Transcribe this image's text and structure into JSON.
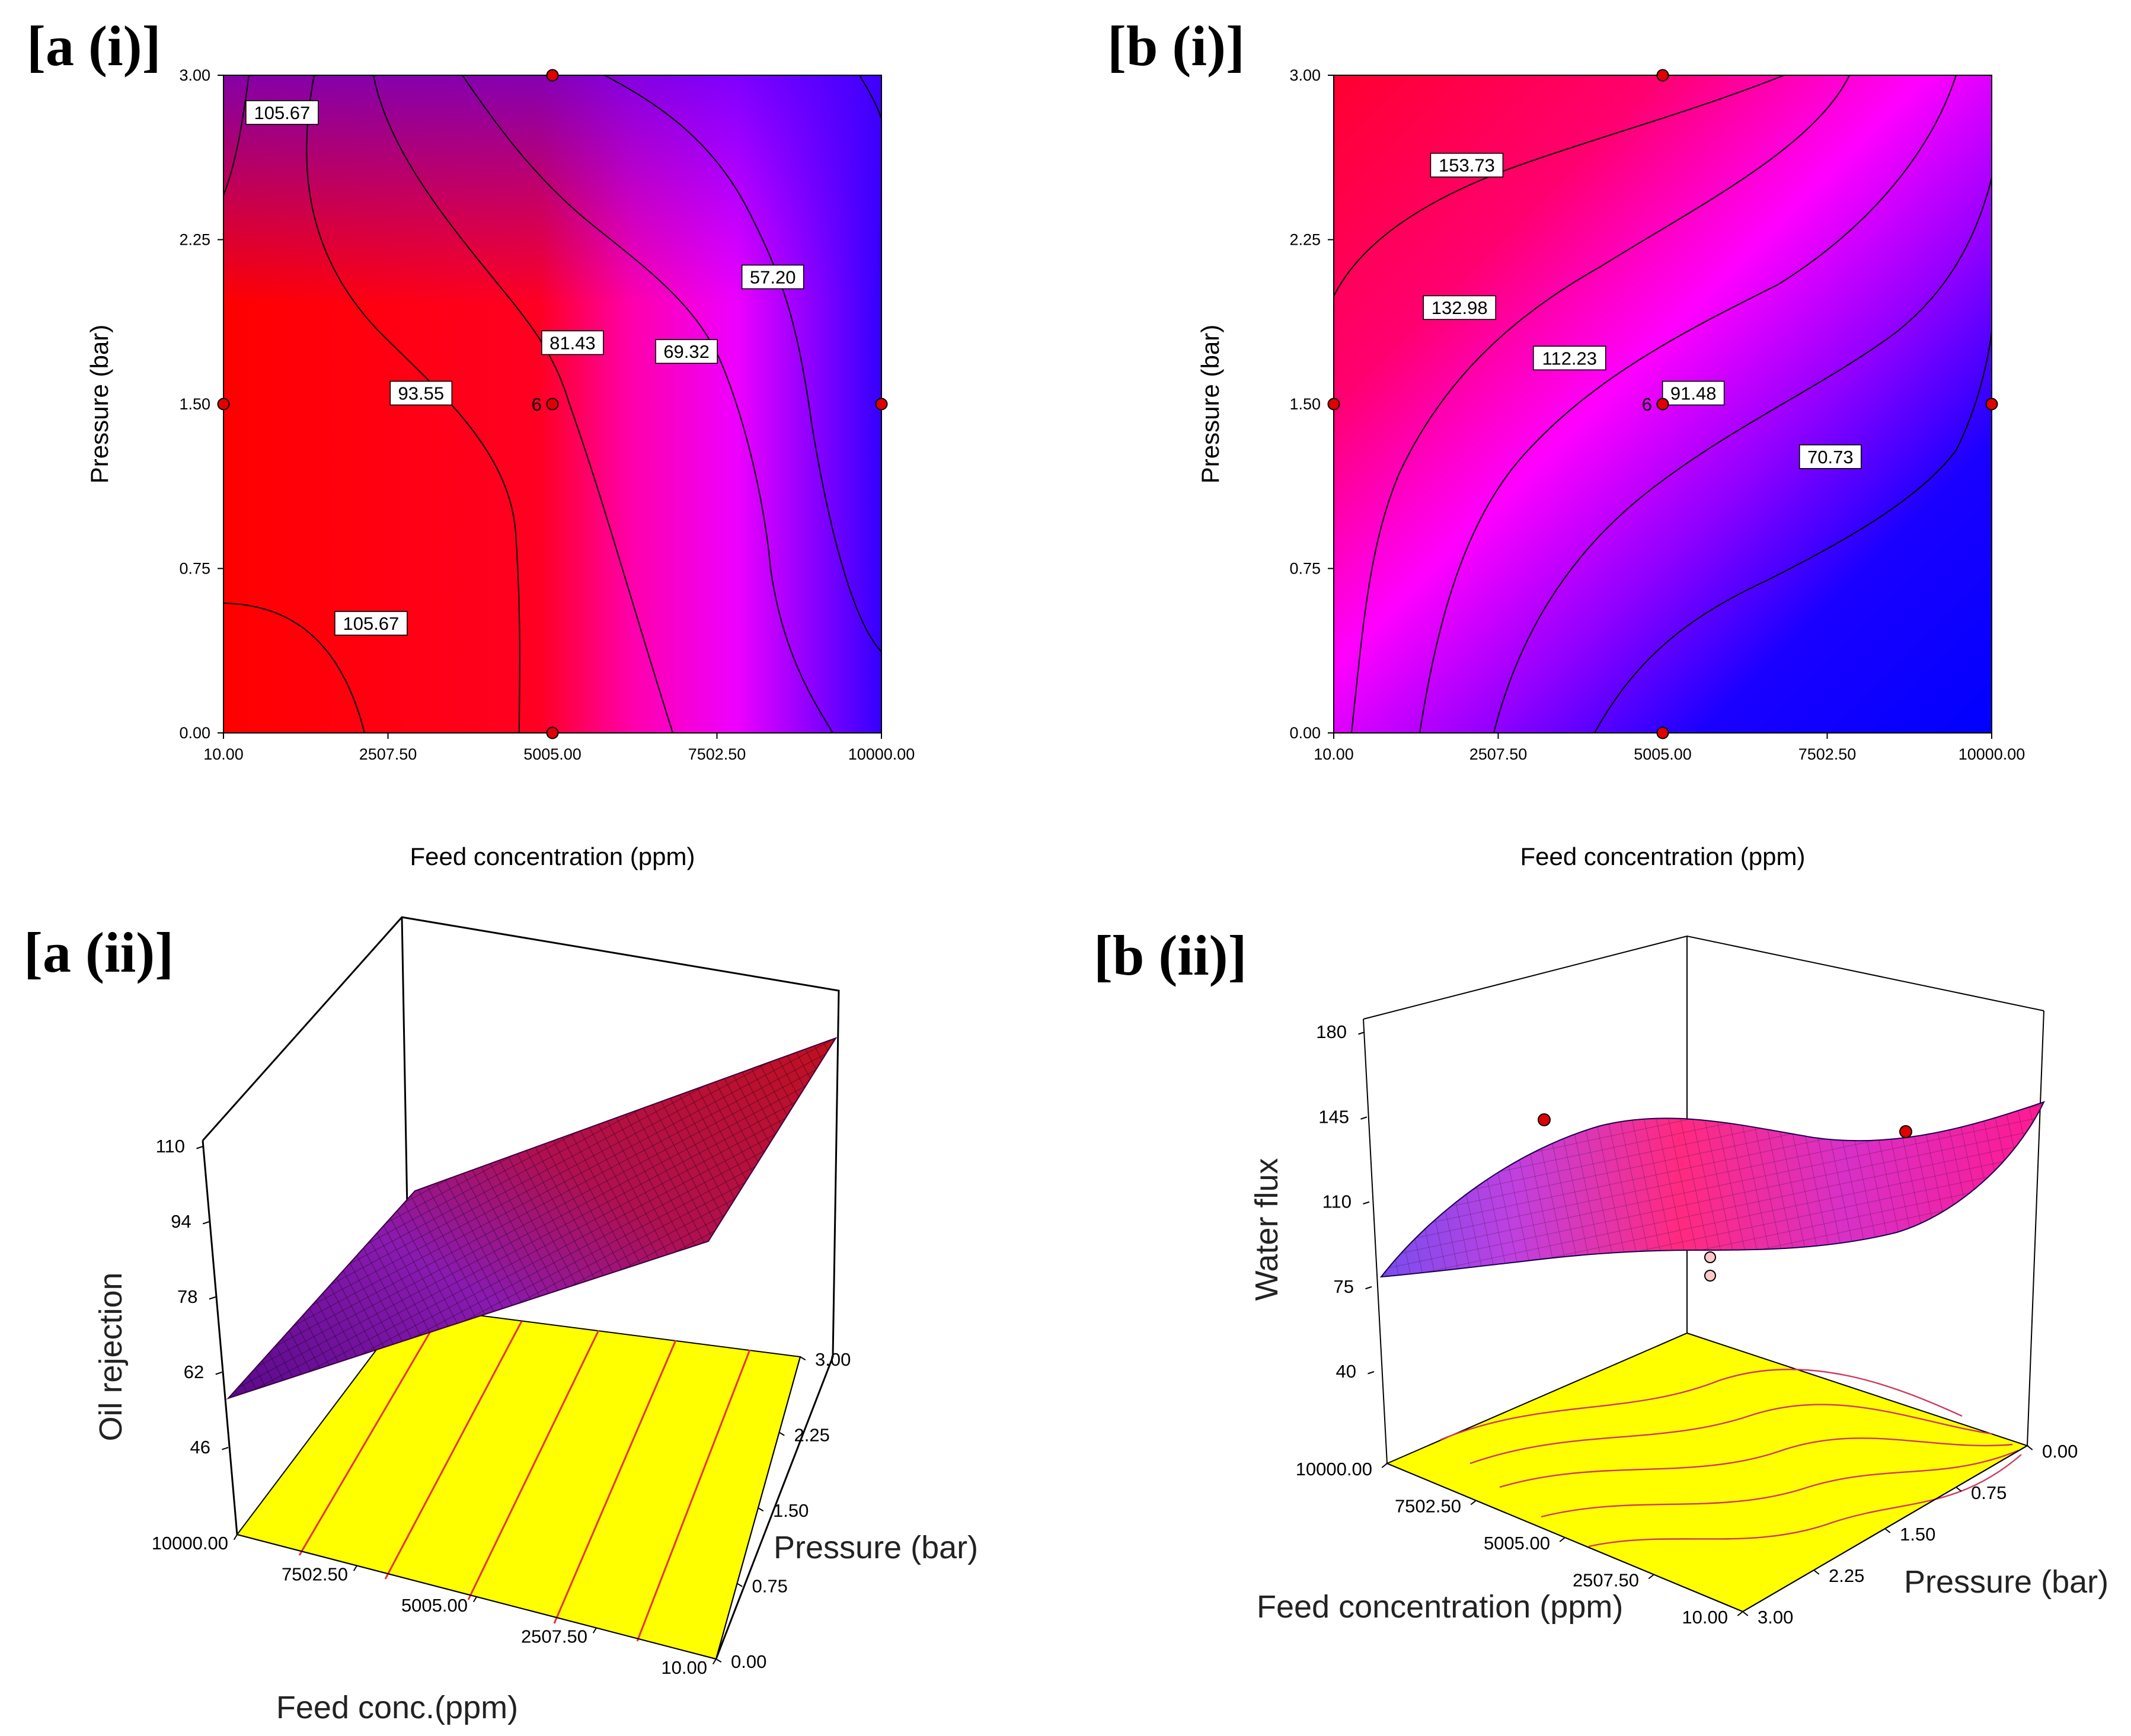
{
  "panel_labels": {
    "a_i": "[a (i)]",
    "b_i": "[b (i)]",
    "a_ii": "[a (ii)]",
    "b_ii": "[b (ii)]"
  },
  "colors": {
    "red": "#ff0000",
    "magenta": "#ff00ff",
    "blue": "#0000ff",
    "yellow": "#ffff00",
    "contour_line_red": "#e8322e",
    "design_point": "#e00000"
  },
  "chart_data": [
    {
      "id": "a_i",
      "type": "contour",
      "title": "",
      "xlabel": "Feed concentration (ppm)",
      "ylabel": "Pressure (bar)",
      "xlim": [
        10,
        10000
      ],
      "ylim": [
        0,
        3
      ],
      "x_ticks": [
        "10.00",
        "2507.50",
        "5005.00",
        "7502.50",
        "10000.00"
      ],
      "y_ticks": [
        "0.00",
        "0.75",
        "1.50",
        "2.25",
        "3.00"
      ],
      "color_scale": "red (high) - magenta - blue (low)",
      "contour_labels": [
        {
          "value": "105.67",
          "x": 900,
          "y": 2.83
        },
        {
          "value": "105.67",
          "x": 2250,
          "y": 0.5
        },
        {
          "value": "93.55",
          "x": 3010,
          "y": 1.55
        },
        {
          "value": "81.43",
          "x": 5310,
          "y": 1.78
        },
        {
          "value": "69.32",
          "x": 7040,
          "y": 1.74
        },
        {
          "value": "57.20",
          "x": 8350,
          "y": 2.08
        }
      ],
      "design_points": [
        {
          "x": 10,
          "y": 1.5
        },
        {
          "x": 5005,
          "y": 0
        },
        {
          "x": 5005,
          "y": 1.5,
          "label": "6"
        },
        {
          "x": 5005,
          "y": 3
        },
        {
          "x": 10000,
          "y": 1.5
        }
      ]
    },
    {
      "id": "b_i",
      "type": "contour",
      "title": "",
      "xlabel": "Feed concentration (ppm)",
      "ylabel": "Pressure (bar)",
      "xlim": [
        10,
        10000
      ],
      "ylim": [
        0,
        3
      ],
      "x_ticks": [
        "10.00",
        "2507.50",
        "5005.00",
        "7502.50",
        "10000.00"
      ],
      "y_ticks": [
        "0.00",
        "0.75",
        "1.50",
        "2.25",
        "3.00"
      ],
      "color_scale": "red (high) - magenta - blue (low)",
      "contour_labels": [
        {
          "value": "153.73",
          "x": 2030,
          "y": 2.59
        },
        {
          "value": "132.98",
          "x": 1920,
          "y": 1.94
        },
        {
          "value": "112.23",
          "x": 3590,
          "y": 1.71
        },
        {
          "value": "91.48",
          "x": 5470,
          "y": 1.55
        },
        {
          "value": "70.73",
          "x": 7550,
          "y": 1.26
        }
      ],
      "design_points": [
        {
          "x": 10,
          "y": 1.5
        },
        {
          "x": 5005,
          "y": 0
        },
        {
          "x": 5005,
          "y": 1.5,
          "label": "6"
        },
        {
          "x": 5005,
          "y": 3
        },
        {
          "x": 10000,
          "y": 1.5
        }
      ]
    },
    {
      "id": "a_ii",
      "type": "surface3d",
      "title": "",
      "zlabel": "Oil rejection",
      "xlabel": "Feed conc.(ppm)",
      "ylabel": "Pressure (bar)",
      "z_ticks": [
        "46",
        "62",
        "78",
        "94",
        "110"
      ],
      "x_ticks": [
        "10000.00",
        "7502.50",
        "5005.00",
        "2507.50",
        "10.00"
      ],
      "y_ticks": [
        "0.00",
        "0.75",
        "1.50",
        "2.25",
        "3.00"
      ],
      "floor_color": "yellow"
    },
    {
      "id": "b_ii",
      "type": "surface3d",
      "title": "",
      "zlabel": "Water flux",
      "xlabel": "Feed concentration (ppm)",
      "ylabel": "Pressure (bar)",
      "z_ticks": [
        "40",
        "75",
        "110",
        "145",
        "180"
      ],
      "x_ticks": [
        "10000.00",
        "7502.50",
        "5005.00",
        "2507.50",
        "10.00"
      ],
      "y_ticks": [
        "0.00",
        "0.75",
        "1.50",
        "2.25",
        "3.00"
      ],
      "floor_color": "yellow"
    }
  ]
}
